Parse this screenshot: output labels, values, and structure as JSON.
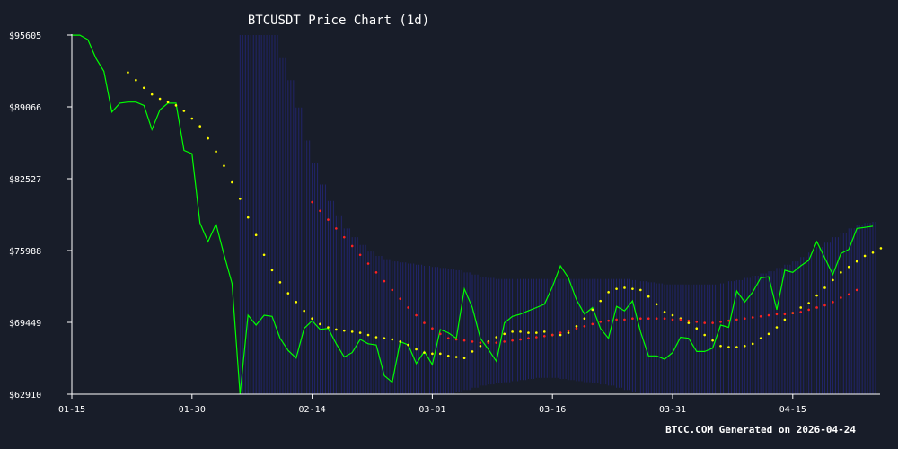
{
  "chart_data": {
    "type": "line",
    "title": "BTCUSDT Price Chart (1d)",
    "xlabel": "",
    "ylabel": "",
    "x_ticks": [
      "01-15",
      "01-30",
      "02-14",
      "03-01",
      "03-16",
      "03-31",
      "04-15"
    ],
    "y_ticks": [
      "$95605",
      "$89066",
      "$82527",
      "$75988",
      "$69449",
      "$62910"
    ],
    "ylim": [
      62910,
      95605
    ],
    "x_start_label": "01-15",
    "x_end_label": "04-24",
    "series": [
      {
        "color": "#00ff00",
        "style": "line",
        "values": [
          95600,
          95600,
          95200,
          93500,
          92300,
          88600,
          89400,
          89500,
          89500,
          89200,
          87000,
          88800,
          89400,
          89400,
          85100,
          84800,
          78500,
          76800,
          78400,
          75600,
          73000,
          62910,
          70100,
          69200,
          70100,
          70000,
          68000,
          66900,
          66200,
          68900,
          69600,
          68800,
          68900,
          67500,
          66300,
          66700,
          67900,
          67500,
          67400,
          64600,
          64000,
          67700,
          67400,
          65700,
          66800,
          65600,
          68800,
          68500,
          68000,
          72500,
          70800,
          68000,
          67000,
          65900,
          69400,
          70000,
          70200,
          70500,
          70800,
          71100,
          72700,
          74600,
          73500,
          71500,
          70200,
          70800,
          68900,
          68000,
          70900,
          70500,
          71400,
          68600,
          66400,
          66400,
          66100,
          66700,
          68100,
          68000,
          66800,
          66800,
          67100,
          69200,
          69000,
          72300,
          71300,
          72200,
          73500,
          73600,
          70600,
          74200,
          74000,
          74600,
          75100,
          76800,
          75300,
          73800,
          75700,
          76100,
          78000,
          78100,
          78200
        ]
      },
      {
        "color": "#ffff00",
        "style": "dotted",
        "start_index": 7,
        "values": [
          92200,
          91500,
          90800,
          90200,
          89800,
          89500,
          89200,
          88700,
          88000,
          87300,
          86200,
          85000,
          83700,
          82200,
          80700,
          79000,
          77400,
          75600,
          74200,
          73100,
          72100,
          71300,
          70500,
          69800,
          69300,
          69000,
          68800,
          68700,
          68600,
          68500,
          68300,
          68100,
          68000,
          67900,
          67700,
          67400,
          67000,
          66700,
          66600,
          66600,
          66400,
          66300,
          66200,
          66800,
          67300,
          67700,
          68100,
          68400,
          68600,
          68600,
          68500,
          68500,
          68600,
          68300,
          68300,
          68500,
          69100,
          69800,
          70600,
          71400,
          72200,
          72500,
          72600,
          72500,
          72400,
          71800,
          71100,
          70400,
          70100,
          69800,
          69400,
          68900,
          68300,
          67800,
          67300,
          67200,
          67200,
          67300,
          67500,
          68000,
          68400,
          69000,
          69700,
          70300,
          70800,
          71200,
          71900,
          72600,
          73300,
          74000,
          74500,
          75000,
          75500,
          75800,
          76200
        ]
      },
      {
        "color": "#ff2222",
        "style": "dotted",
        "start_index": 30,
        "values": [
          80400,
          79600,
          78800,
          78000,
          77200,
          76400,
          75600,
          74800,
          74000,
          73200,
          72400,
          71600,
          70800,
          70100,
          69400,
          68900,
          68400,
          68000,
          67900,
          67800,
          67700,
          67600,
          67600,
          67600,
          67700,
          67800,
          67900,
          68000,
          68100,
          68200,
          68300,
          68500,
          68700,
          68900,
          69100,
          69300,
          69500,
          69600,
          69700,
          69700,
          69800,
          69800,
          69800,
          69800,
          69800,
          69700,
          69700,
          69600,
          69500,
          69400,
          69400,
          69500,
          69600,
          69700,
          69800,
          69900,
          70000,
          70100,
          70200,
          70200,
          70300,
          70400,
          70600,
          70800,
          71000,
          71300,
          71700,
          72000,
          72400
        ]
      }
    ],
    "band": {
      "color": "#2a2aa0",
      "start_index": 21,
      "upper": [
        95605,
        95605,
        95605,
        95605,
        95605,
        93500,
        91500,
        89000,
        86000,
        84000,
        82000,
        80500,
        79200,
        78000,
        77200,
        76500,
        75900,
        75500,
        75200,
        75000,
        74900,
        74800,
        74700,
        74600,
        74500,
        74400,
        74300,
        74200,
        74000,
        73800,
        73600,
        73500,
        73400,
        73400,
        73400,
        73400,
        73400,
        73400,
        73400,
        73400,
        73400,
        73400,
        73400,
        73400,
        73400,
        73400,
        73400,
        73400,
        73400,
        73300,
        73200,
        73100,
        73000,
        72900,
        72900,
        72900,
        72900,
        72900,
        72900,
        72900,
        73000,
        73200,
        73300,
        73500,
        73700,
        73900,
        74100,
        74400,
        74700,
        75000,
        75400,
        75800,
        76300,
        76700,
        77200,
        77600,
        78000,
        78300,
        78500,
        78600
      ],
      "lower": [
        62910,
        62910,
        62910,
        62910,
        62910,
        62910,
        62910,
        62910,
        62910,
        62910,
        62910,
        62910,
        62910,
        62910,
        62910,
        62910,
        62910,
        62910,
        62910,
        62910,
        62910,
        62910,
        62910,
        62910,
        62910,
        62910,
        62910,
        63100,
        63300,
        63500,
        63700,
        63800,
        63900,
        64000,
        64100,
        64200,
        64300,
        64400,
        64400,
        64400,
        64300,
        64200,
        64100,
        64000,
        63900,
        63800,
        63700,
        63500,
        63300,
        63100,
        62910,
        62910,
        62910,
        62910,
        62910,
        62910,
        62910,
        62910,
        62910,
        62910,
        62910,
        62910,
        62910,
        62910,
        62910,
        62910,
        62910,
        62910,
        62910,
        62910,
        62910,
        62910,
        62910,
        62910,
        62910,
        62910,
        62910,
        62910,
        62910,
        62910
      ]
    },
    "grid": false,
    "legend": "none"
  },
  "footer": "BTCC.COM Generated on 2026-04-24"
}
